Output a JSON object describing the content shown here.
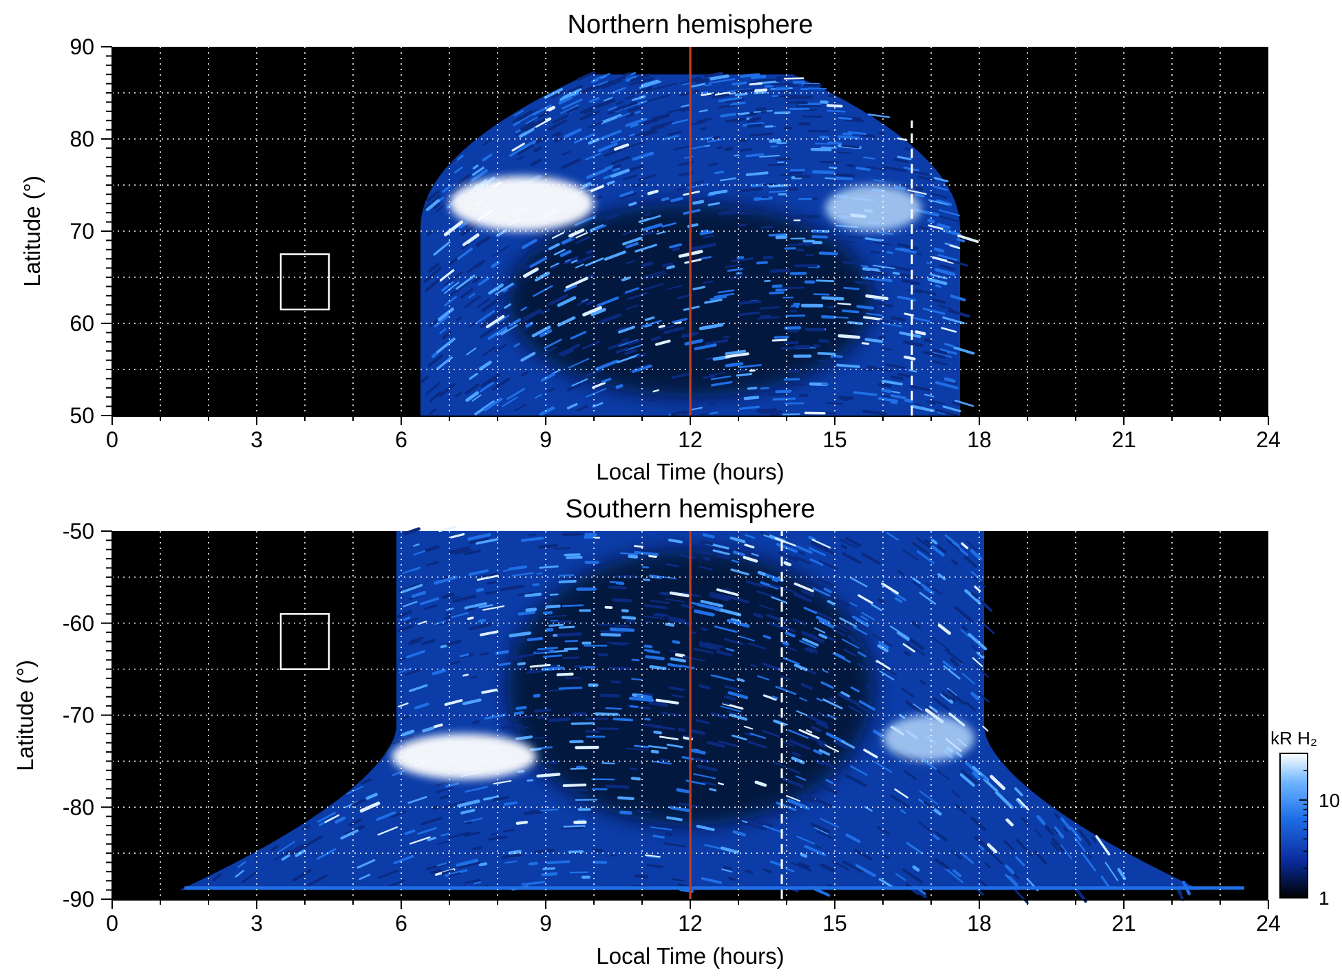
{
  "chart_data": [
    {
      "type": "heatmap",
      "title": "Northern hemisphere",
      "xlabel": "Local Time (hours)",
      "ylabel": "Latitude (°)",
      "xlim": [
        0,
        24
      ],
      "ylim": [
        50,
        90
      ],
      "xticks": [
        0,
        3,
        6,
        9,
        12,
        15,
        18,
        21,
        24
      ],
      "yticks": [
        50,
        60,
        70,
        80,
        90
      ],
      "grid": true,
      "grid_x_step": 1,
      "grid_y_step": 5,
      "noon_line_lt": 12,
      "terminator_lt": 16.6,
      "terminator_lat_range": [
        50,
        82
      ],
      "box": {
        "lt": [
          3.5,
          4.5
        ],
        "lat": [
          61.5,
          67.5
        ]
      },
      "emission_region": {
        "lt_start_at_50": 6.4,
        "lt_end_at_50": 17.6,
        "max_lat": 87
      },
      "bright_arcs": [
        {
          "lt": [
            7.0,
            10.0
          ],
          "lat": [
            70,
            76
          ],
          "level": "high"
        },
        {
          "lt": [
            14.8,
            16.8
          ],
          "lat": [
            70,
            75
          ],
          "level": "medium"
        }
      ]
    },
    {
      "type": "heatmap",
      "title": "Southern hemisphere",
      "xlabel": "Local Time (hours)",
      "ylabel": "Latitude (°)",
      "xlim": [
        0,
        24
      ],
      "ylim": [
        -90,
        -50
      ],
      "xticks": [
        0,
        3,
        6,
        9,
        12,
        15,
        18,
        21,
        24
      ],
      "yticks": [
        -50,
        -60,
        -70,
        -80,
        -90
      ],
      "grid": true,
      "grid_x_step": 1,
      "grid_y_step": 5,
      "noon_line_lt": 12,
      "terminator_lt": 13.9,
      "terminator_lat_range": [
        -90,
        -50
      ],
      "box": {
        "lt": [
          3.5,
          4.5
        ],
        "lat": [
          -65,
          -59
        ]
      },
      "emission_region": {
        "lt_start_at_50": 6.0,
        "lt_end_at_50": 18.2,
        "max_lat": -89
      },
      "bright_arcs": [
        {
          "lt": [
            5.8,
            8.8
          ],
          "lat": [
            -77,
            -72
          ],
          "level": "high"
        },
        {
          "lt": [
            16.0,
            17.9
          ],
          "lat": [
            -75,
            -70
          ],
          "level": "medium"
        }
      ]
    }
  ],
  "colorbar": {
    "title": "kR H₂",
    "ticks": [
      1,
      10
    ],
    "scale": "log",
    "range": [
      1,
      30
    ],
    "colors": [
      "#000000",
      "#0a2a9a",
      "#1e6ee8",
      "#6fb6ff",
      "#ffffff"
    ]
  },
  "colors": {
    "noon_line": "#c0391b",
    "grid": "#ffffff",
    "terminator": "#ffffff",
    "background": "#000000",
    "emission_low": "#0a3fb0",
    "emission_high": "#ffffff"
  }
}
